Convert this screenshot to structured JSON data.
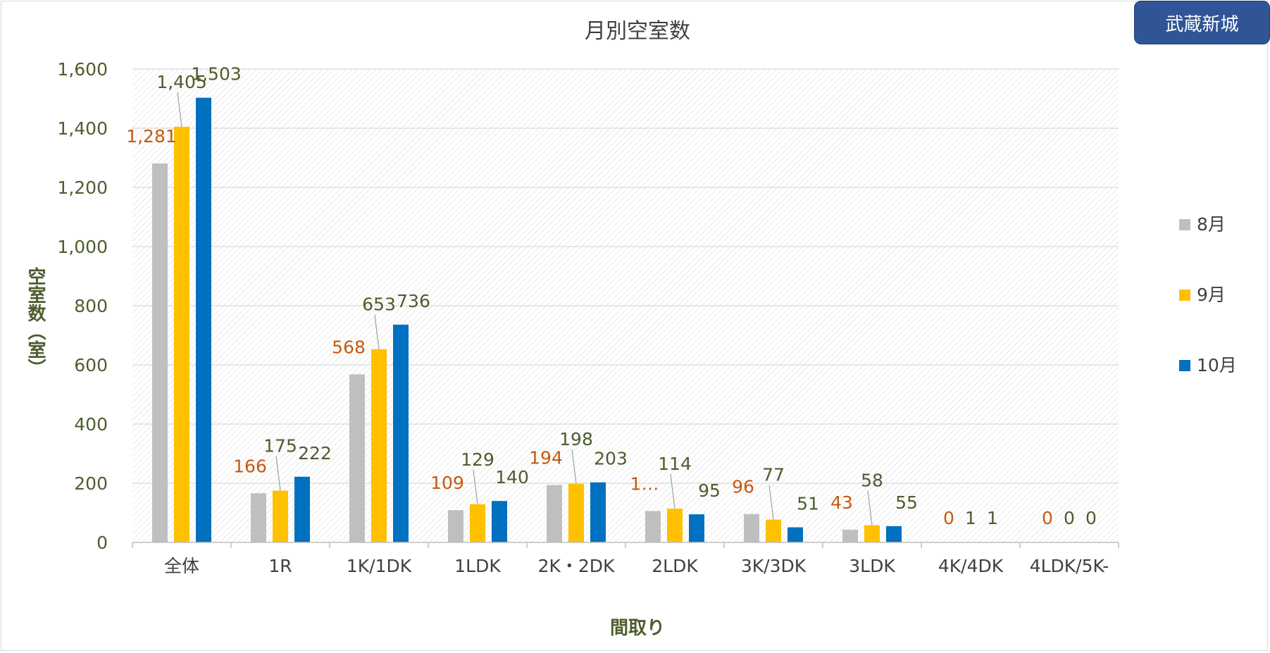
{
  "badge": {
    "label": "武蔵新城"
  },
  "colors": {
    "series": [
      "#bfbfbf",
      "#ffc000",
      "#0070c0"
    ],
    "label_orange": "#c55a11",
    "label_green": "#4e5d2f",
    "axis_text": "#4e5d2f",
    "title_text": "#404040",
    "grid": "#d9d9d9"
  },
  "chart_data": {
    "type": "bar",
    "title": "月別空室数",
    "xlabel": "間取り",
    "ylabel": "空室数（室）",
    "categories": [
      "全体",
      "1R",
      "1K/1DK",
      "1LDK",
      "2K・2DK",
      "2LDK",
      "3K/3DK",
      "3LDK",
      "4K/4DK",
      "4LDK/5K-"
    ],
    "series": [
      {
        "name": "8月",
        "values": [
          1281,
          166,
          568,
          109,
          194,
          106,
          96,
          43,
          0,
          0
        ]
      },
      {
        "name": "9月",
        "values": [
          1405,
          175,
          653,
          129,
          198,
          114,
          77,
          58,
          1,
          0
        ]
      },
      {
        "name": "10月",
        "values": [
          1503,
          222,
          736,
          140,
          203,
          95,
          51,
          55,
          1,
          0
        ]
      }
    ],
    "data_labels": [
      [
        "1,281",
        "166",
        "568",
        "109",
        "194",
        "1…",
        "96",
        "43",
        "0",
        "0"
      ],
      [
        "1,405",
        "175",
        "653",
        "129",
        "198",
        "114",
        "77",
        "58",
        "1",
        "0"
      ],
      [
        "1,503",
        "222",
        "736",
        "140",
        "203",
        "95",
        "51",
        "55",
        "1",
        "0"
      ]
    ],
    "yticks": [
      0,
      200,
      400,
      600,
      800,
      1000,
      1200,
      1400,
      1600
    ],
    "ytick_labels": [
      "0",
      "200",
      "400",
      "600",
      "800",
      "1,000",
      "1,200",
      "1,400",
      "1,600"
    ],
    "ylim": [
      0,
      1600
    ],
    "grid": true,
    "legend_position": "right"
  }
}
